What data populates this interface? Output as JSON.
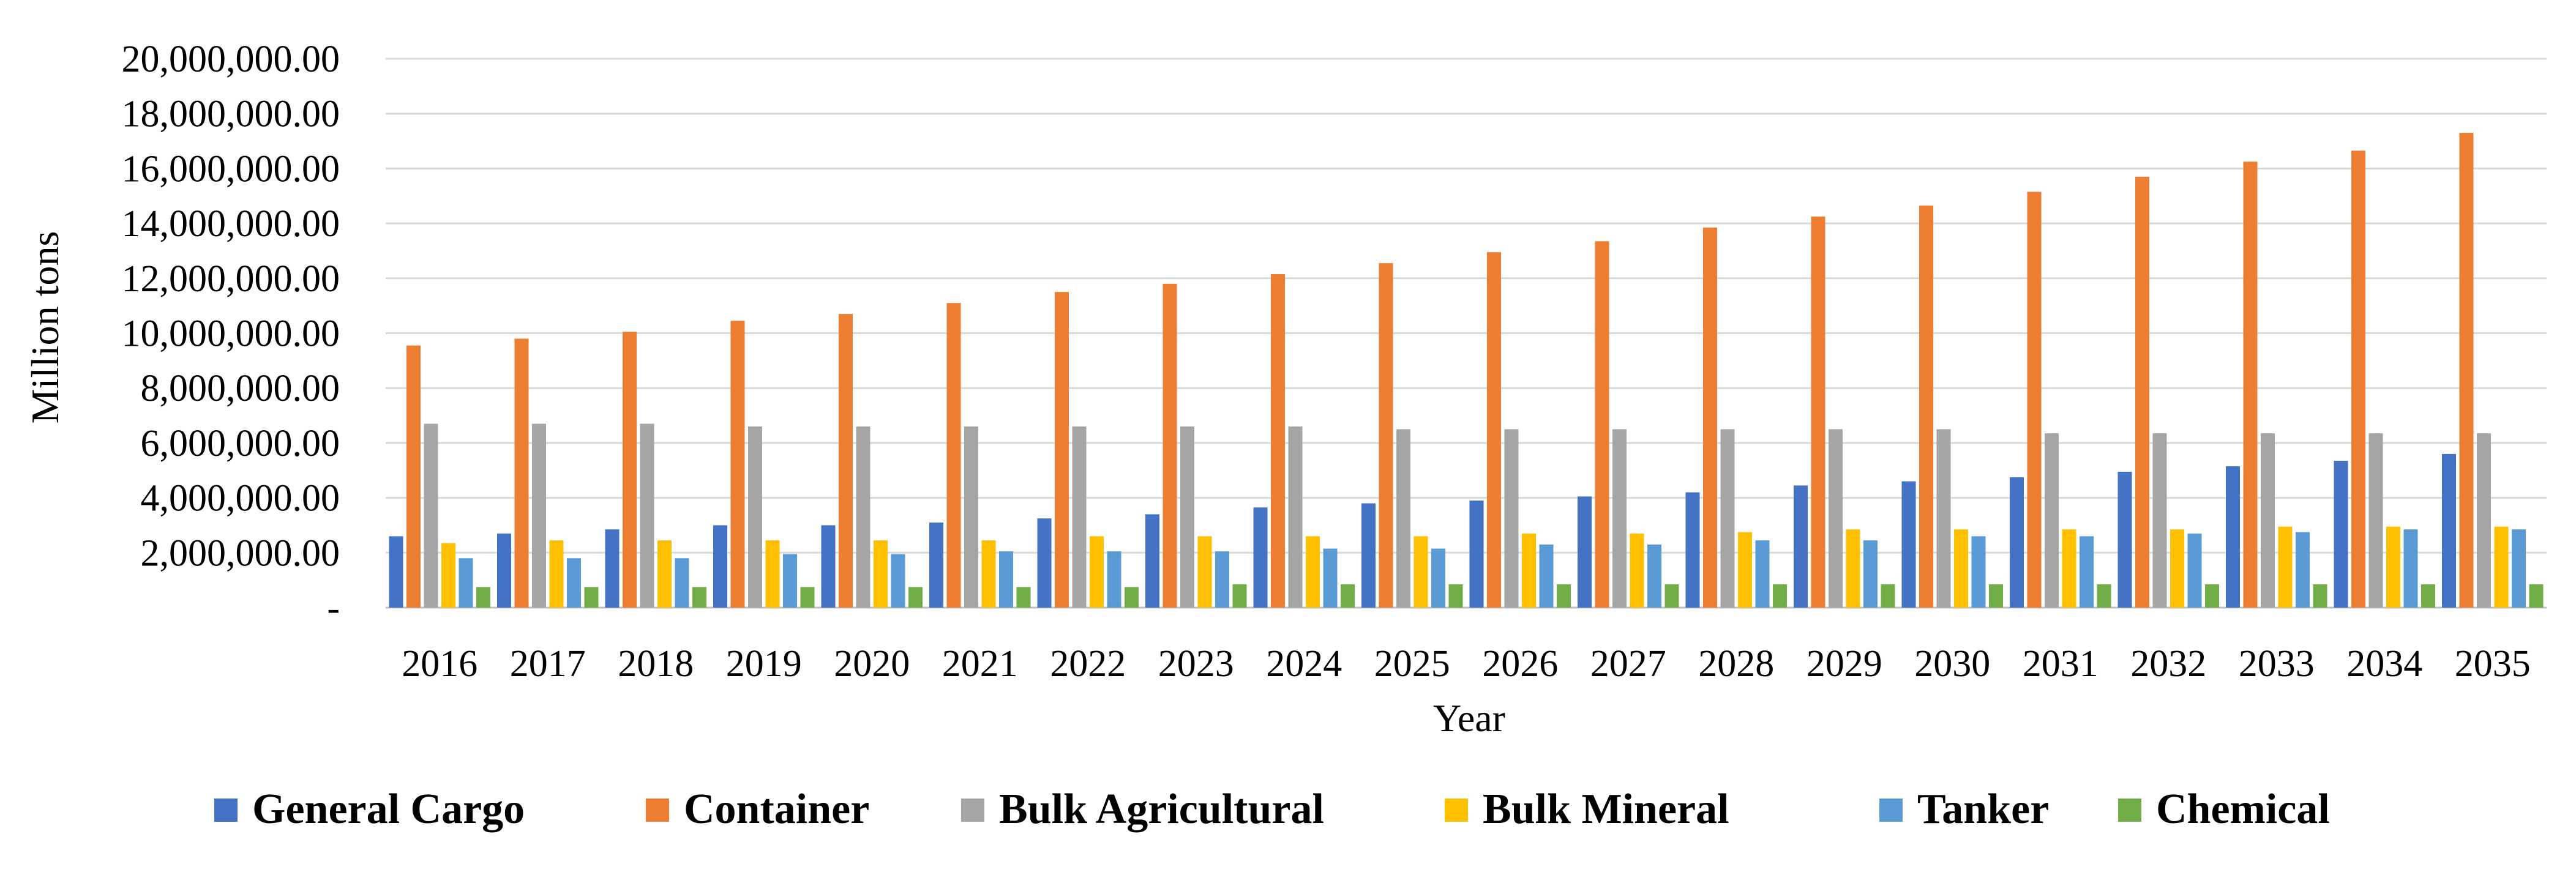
{
  "chart_data": {
    "type": "bar",
    "xlabel": "Year",
    "ylabel": "Million tons",
    "ylim": [
      0,
      20000000
    ],
    "ytick_labels": [
      "-",
      "2,000,000.00",
      "4,000,000.00",
      "6,000,000.00",
      "8,000,000.00",
      "10,000,000.00",
      "12,000,000.00",
      "14,000,000.00",
      "16,000,000.00",
      "18,000,000.00",
      "20,000,000.00"
    ],
    "grid": "horizontal",
    "legend_position": "bottom",
    "categories": [
      "2016",
      "2017",
      "2018",
      "2019",
      "2020",
      "2021",
      "2022",
      "2023",
      "2024",
      "2025",
      "2026",
      "2027",
      "2028",
      "2029",
      "2030",
      "2031",
      "2032",
      "2033",
      "2034",
      "2035"
    ],
    "series": [
      {
        "name": "General Cargo",
        "color": "#4472C4",
        "values": [
          2600000,
          2700000,
          2850000,
          3000000,
          3000000,
          3100000,
          3250000,
          3400000,
          3650000,
          3800000,
          3900000,
          4050000,
          4200000,
          4450000,
          4600000,
          4750000,
          4950000,
          5150000,
          5350000,
          5600000
        ]
      },
      {
        "name": "Container",
        "color": "#ED7D31",
        "values": [
          9550000,
          9800000,
          10050000,
          10450000,
          10700000,
          11100000,
          11500000,
          11800000,
          12150000,
          12550000,
          12950000,
          13350000,
          13850000,
          14250000,
          14650000,
          15150000,
          15700000,
          16250000,
          16650000,
          17300000
        ]
      },
      {
        "name": "Bulk Agricultural",
        "color": "#A5A5A5",
        "values": [
          6700000,
          6700000,
          6700000,
          6600000,
          6600000,
          6600000,
          6600000,
          6600000,
          6600000,
          6500000,
          6500000,
          6500000,
          6500000,
          6500000,
          6500000,
          6350000,
          6350000,
          6350000,
          6350000,
          6350000
        ]
      },
      {
        "name": "Bulk Mineral",
        "color": "#FFC000",
        "values": [
          2350000,
          2450000,
          2450000,
          2450000,
          2450000,
          2450000,
          2600000,
          2600000,
          2600000,
          2600000,
          2700000,
          2700000,
          2750000,
          2850000,
          2850000,
          2850000,
          2850000,
          2950000,
          2950000,
          2950000
        ]
      },
      {
        "name": "Tanker",
        "color": "#5B9BD5",
        "values": [
          1800000,
          1800000,
          1800000,
          1950000,
          1950000,
          2050000,
          2050000,
          2050000,
          2150000,
          2150000,
          2300000,
          2300000,
          2450000,
          2450000,
          2600000,
          2600000,
          2700000,
          2750000,
          2850000,
          2850000
        ]
      },
      {
        "name": "Chemical",
        "color": "#70AD47",
        "values": [
          750000,
          750000,
          750000,
          750000,
          750000,
          750000,
          750000,
          850000,
          850000,
          850000,
          850000,
          850000,
          850000,
          850000,
          850000,
          850000,
          850000,
          850000,
          850000,
          850000
        ]
      }
    ]
  }
}
